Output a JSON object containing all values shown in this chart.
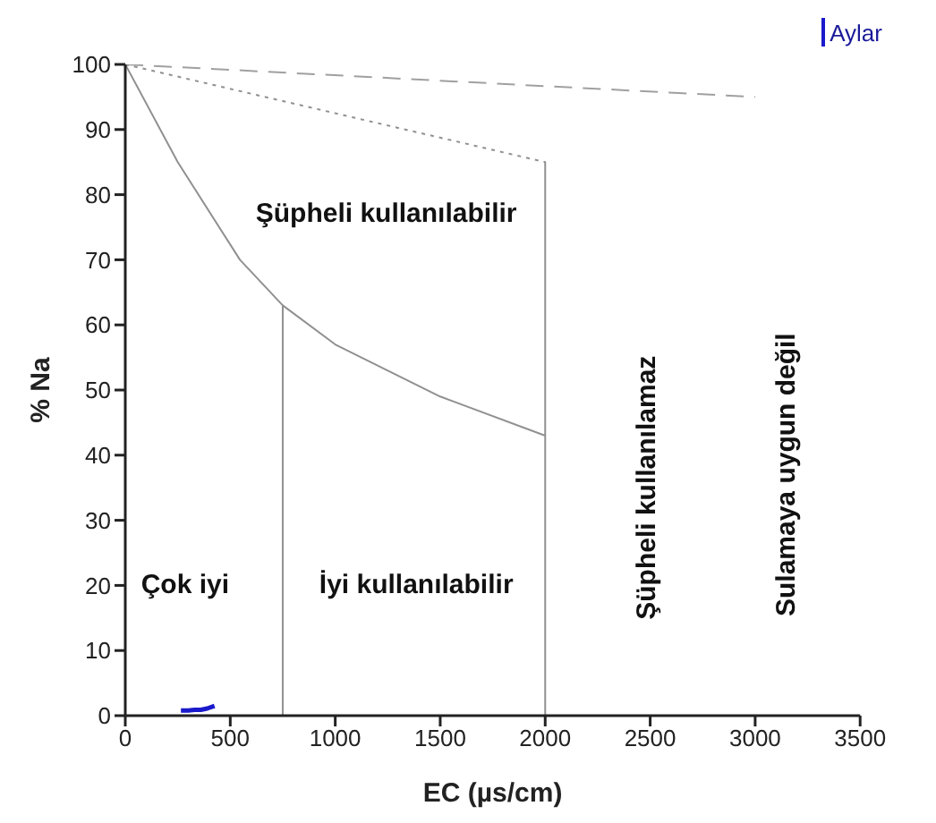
{
  "chart_data": {
    "type": "line",
    "xlabel": "EC (µs/cm)",
    "ylabel": "% Na",
    "xlim": [
      0,
      3500
    ],
    "xticks": [
      0,
      500,
      1000,
      1500,
      2000,
      2500,
      3000,
      3500
    ],
    "ylim": [
      0,
      100
    ],
    "yticks": [
      0,
      10,
      20,
      30,
      40,
      50,
      60,
      70,
      80,
      90,
      100
    ],
    "grid": false,
    "legend": "top right",
    "marker": "none",
    "series": [
      {
        "name": "Aylar",
        "color": "#1a1acc",
        "x": [
          265,
          300,
          330,
          360,
          390,
          425
        ],
        "values": [
          0.8,
          0.8,
          0.9,
          0.9,
          1.1,
          1.5
        ]
      },
      {
        "color": "#a0a0a0",
        "line_style": "dashed",
        "x": [
          0,
          3000
        ],
        "values": [
          100,
          95
        ]
      },
      {
        "color": "#909090",
        "line_style": "dotted",
        "x": [
          0,
          2000
        ],
        "values": [
          100,
          85
        ]
      },
      {
        "color": "#909090",
        "line_style": "solid",
        "x": [
          0,
          250,
          546,
          750,
          1000,
          1500,
          2000,
          2000,
          2000
        ],
        "values": [
          100,
          85,
          70,
          63,
          57,
          49,
          43,
          85,
          0
        ]
      },
      {
        "color": "#909090",
        "line_style": "solid",
        "x": [
          750,
          750
        ],
        "values": [
          0,
          63
        ]
      }
    ],
    "annotations": [
      "Şüpheli kullanılabilir",
      "Çok iyi",
      "İyi kullanılabilir",
      "Şüpheli kullanılamaz",
      "Sulamaya uygun değil"
    ]
  }
}
